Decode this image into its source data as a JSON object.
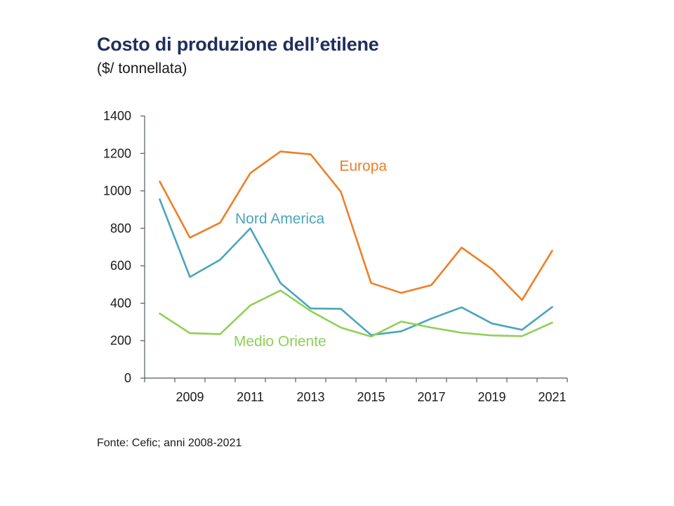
{
  "chart_data": {
    "type": "line",
    "title": "Costo di produzione dell’etilene",
    "subtitle": "($/ tonnellata)",
    "xlabel": "",
    "ylabel": "",
    "x": [
      2008,
      2009,
      2010,
      2011,
      2012,
      2013,
      2014,
      2015,
      2016,
      2017,
      2018,
      2019,
      2020,
      2021
    ],
    "x_tick_labels": [
      "2009",
      "2011",
      "2013",
      "2015",
      "2017",
      "2019",
      "2021"
    ],
    "x_tick_values": [
      2009,
      2011,
      2013,
      2015,
      2017,
      2019,
      2021
    ],
    "y_tick_labels": [
      "0",
      "200",
      "400",
      "600",
      "800",
      "1000",
      "1200",
      "1400"
    ],
    "ylim": [
      0,
      1400
    ],
    "xlim": [
      2007.5,
      2021.5
    ],
    "series": [
      {
        "name": "Europa",
        "color": "#ee7f27",
        "values": [
          1050,
          750,
          830,
          1095,
          1210,
          1195,
          995,
          508,
          455,
          497,
          697,
          583,
          417,
          680
        ]
      },
      {
        "name": "Nord America",
        "color": "#4ba5bb",
        "values": [
          955,
          540,
          632,
          800,
          508,
          372,
          370,
          230,
          250,
          318,
          378,
          292,
          258,
          380
        ]
      },
      {
        "name": "Medio Oriente",
        "color": "#8fd056",
        "values": [
          345,
          240,
          235,
          388,
          468,
          358,
          270,
          222,
          302,
          270,
          242,
          228,
          224,
          296
        ]
      }
    ],
    "grid": false
  },
  "footer": {
    "source": "Fonte: Cefic; anni 2008-2021"
  }
}
